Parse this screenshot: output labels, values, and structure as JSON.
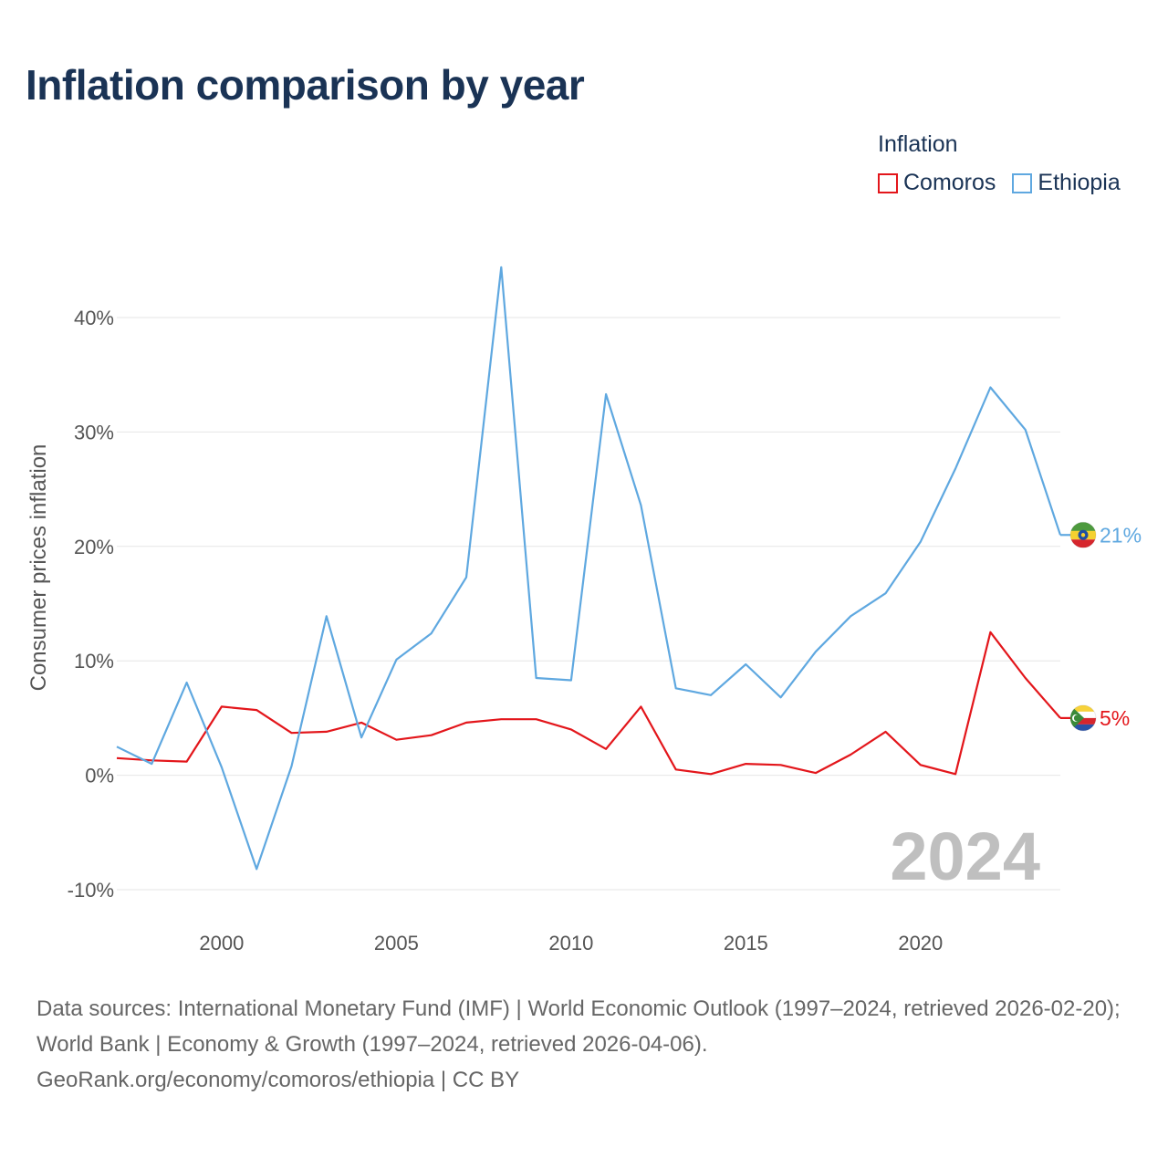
{
  "title": "Inflation comparison by year",
  "legend": {
    "title": "Inflation",
    "items": [
      {
        "name": "Comoros",
        "color": "#e3161b"
      },
      {
        "name": "Ethiopia",
        "color": "#5fa8e0"
      }
    ]
  },
  "watermark_year": "2024",
  "source": {
    "line1": "Data sources: International Monetary Fund (IMF) | World Economic Outlook (1997–2024, retrieved 2026-02-20); World Bank | Economy & Growth (1997–2024, retrieved 2026-04-06).",
    "line2": "GeoRank.org/economy/comoros/ethiopia | CC BY"
  },
  "chart_data": {
    "type": "line",
    "title": "Inflation comparison by year",
    "xlabel": "",
    "ylabel": "Consumer prices inflation",
    "xlim": [
      1997,
      2024
    ],
    "ylim": [
      -10,
      40
    ],
    "x_ticks": [
      2000,
      2005,
      2010,
      2015,
      2020
    ],
    "y_ticks": [
      -10,
      0,
      10,
      20,
      30,
      40
    ],
    "y_tick_labels": [
      "-10%",
      "0%",
      "10%",
      "20%",
      "30%",
      "40%"
    ],
    "x": [
      1997,
      1998,
      1999,
      2000,
      2001,
      2002,
      2003,
      2004,
      2005,
      2006,
      2007,
      2008,
      2009,
      2010,
      2011,
      2012,
      2013,
      2014,
      2015,
      2016,
      2017,
      2018,
      2019,
      2020,
      2021,
      2022,
      2023,
      2024
    ],
    "series": [
      {
        "name": "Comoros",
        "color": "#e3161b",
        "end_label": "5%",
        "values": [
          1.5,
          1.3,
          1.2,
          6.0,
          5.7,
          3.7,
          3.8,
          4.6,
          3.1,
          3.5,
          4.6,
          4.9,
          4.9,
          4.0,
          2.3,
          6.0,
          0.5,
          0.1,
          1.0,
          0.9,
          0.2,
          1.8,
          3.8,
          0.9,
          0.1,
          12.5,
          8.5,
          5.0
        ]
      },
      {
        "name": "Ethiopia",
        "color": "#5fa8e0",
        "end_label": "21%",
        "values": [
          2.5,
          1.0,
          8.1,
          0.7,
          -8.2,
          0.8,
          13.9,
          3.3,
          10.1,
          12.4,
          17.3,
          44.4,
          8.5,
          8.3,
          33.3,
          23.6,
          7.6,
          7.0,
          9.7,
          6.8,
          10.8,
          13.9,
          15.9,
          20.4,
          26.8,
          33.9,
          30.2,
          21.0
        ]
      }
    ]
  }
}
